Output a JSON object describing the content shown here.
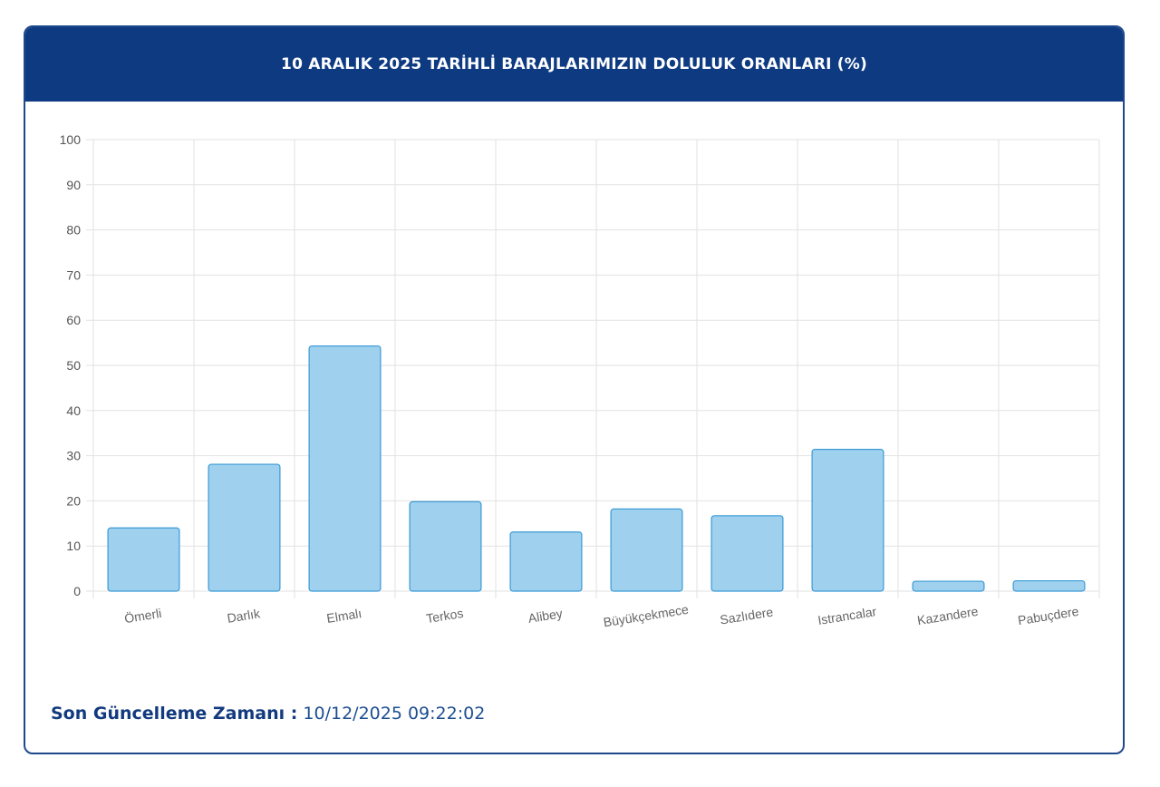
{
  "header": {
    "title": "10 ARALIK 2025 TARİHLİ BARAJLARIMIZIN DOLULUK ORANLARI (%)"
  },
  "footer": {
    "label": "Son Güncelleme Zamanı :",
    "value": "10/12/2025 09:22:02"
  },
  "colors": {
    "header_bg": "#0e3a82",
    "bar_fill": "#9fd1ee",
    "bar_stroke": "#3a9ad6",
    "grid": "#e2e2e2"
  },
  "chart_data": {
    "type": "bar",
    "title": "10 ARALIK 2025 TARİHLİ BARAJLARIMIZIN DOLULUK ORANLARI (%)",
    "categories": [
      "Ömerli",
      "Darlık",
      "Elmalı",
      "Terkos",
      "Alibey",
      "Büyükçekmece",
      "Sazlıdere",
      "Istrancalar",
      "Kazandere",
      "Pabuçdere"
    ],
    "values": [
      14,
      28.1,
      54.3,
      19.8,
      13.1,
      18.2,
      16.7,
      31.4,
      2.2,
      2.3
    ],
    "ylim": [
      0,
      100
    ],
    "yticks": [
      0,
      10,
      20,
      30,
      40,
      50,
      60,
      70,
      80,
      90,
      100
    ],
    "xlabel": "",
    "ylabel": "",
    "grid": true,
    "legend": "none"
  }
}
